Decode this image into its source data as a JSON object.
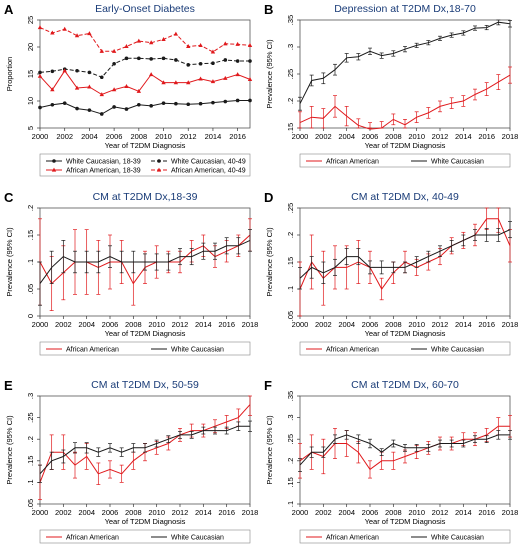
{
  "figure": {
    "colors": {
      "black": "#1a1a1a",
      "red": "#e0191c",
      "title": "#1a3c78",
      "frame": "#555555"
    }
  },
  "chart_data": [
    {
      "panel": "A",
      "type": "line",
      "title": "Early-Onset Diabetes",
      "xlabel": "Year of T2DM Diagnosis",
      "ylabel": "Proportion",
      "xlim": [
        2000,
        2017
      ],
      "ylim": [
        5,
        25
      ],
      "x_ticks": [
        2000,
        2002,
        2004,
        2006,
        2008,
        2010,
        2012,
        2014,
        2016
      ],
      "y_ticks": [
        5,
        10,
        15,
        20,
        25
      ],
      "x": [
        2000,
        2001,
        2002,
        2003,
        2004,
        2005,
        2006,
        2007,
        2008,
        2009,
        2010,
        2011,
        2012,
        2013,
        2014,
        2015,
        2016,
        2017
      ],
      "series": [
        {
          "name": "White Caucasian, 18-39",
          "color": "black",
          "dash": "solid",
          "marker": "circle",
          "values": [
            8.8,
            9.3,
            9.6,
            8.6,
            8.3,
            7.6,
            8.9,
            8.5,
            9.3,
            9.1,
            9.6,
            9.5,
            9.4,
            9.5,
            9.7,
            9.9,
            10.1,
            10.1
          ]
        },
        {
          "name": "White Caucasian, 40-49",
          "color": "black",
          "dash": "dashed",
          "marker": "circle",
          "values": [
            15.3,
            15.5,
            15.9,
            15.6,
            15.3,
            14.4,
            16.9,
            17.9,
            17.9,
            17.8,
            17.9,
            17.6,
            16.7,
            16.9,
            17.0,
            17.6,
            17.4,
            17.4
          ]
        },
        {
          "name": "African American, 18-39",
          "color": "red",
          "dash": "solid",
          "marker": "triangle",
          "values": [
            14.6,
            12.1,
            15.6,
            12.4,
            12.6,
            11.2,
            12.1,
            12.7,
            11.8,
            14.9,
            13.4,
            13.4,
            13.4,
            14.1,
            13.6,
            14.2,
            14.9,
            14.0
          ]
        },
        {
          "name": "African American, 40-49",
          "color": "red",
          "dash": "dashed",
          "marker": "triangle",
          "values": [
            23.6,
            22.6,
            23.3,
            22.1,
            22.5,
            19.2,
            19.2,
            20.1,
            21.1,
            20.8,
            21.4,
            22.4,
            20.1,
            20.3,
            19.1,
            20.6,
            20.5,
            20.3
          ]
        }
      ],
      "legend_position": "bottom"
    },
    {
      "panel": "B",
      "type": "line",
      "title": "Depression at T2DM Dx,18-70",
      "xlabel": "Year of T2DM Diagnosis",
      "ylabel": "Prevalence (95% CI)",
      "xlim": [
        2000,
        2018
      ],
      "ylim": [
        0.15,
        0.35
      ],
      "x_ticks": [
        2000,
        2002,
        2004,
        2006,
        2008,
        2010,
        2012,
        2014,
        2016,
        2018
      ],
      "y_ticks": [
        0.15,
        0.2,
        0.25,
        0.3,
        0.35
      ],
      "y_tick_labels": [
        ".15",
        ".2",
        ".25",
        ".3",
        ".35"
      ],
      "x": [
        2000,
        2001,
        2002,
        2003,
        2004,
        2005,
        2006,
        2007,
        2008,
        2009,
        2010,
        2011,
        2012,
        2013,
        2014,
        2015,
        2016,
        2017,
        2018
      ],
      "series": [
        {
          "name": "African American",
          "color": "red",
          "values": [
            0.16,
            0.17,
            0.168,
            0.19,
            0.172,
            0.155,
            0.148,
            0.15,
            0.166,
            0.156,
            0.17,
            0.178,
            0.19,
            0.196,
            0.2,
            0.212,
            0.222,
            0.235,
            0.248
          ],
          "ci": [
            0.02,
            0.02,
            0.018,
            0.02,
            0.018,
            0.012,
            0.012,
            0.012,
            0.01,
            0.01,
            0.01,
            0.01,
            0.01,
            0.01,
            0.01,
            0.01,
            0.012,
            0.014,
            0.015
          ]
        },
        {
          "name": "White Caucasian",
          "color": "black",
          "values": [
            0.195,
            0.238,
            0.242,
            0.258,
            0.28,
            0.282,
            0.292,
            0.284,
            0.288,
            0.296,
            0.303,
            0.308,
            0.316,
            0.322,
            0.326,
            0.335,
            0.336,
            0.346,
            0.343
          ],
          "ci": [
            0.012,
            0.01,
            0.01,
            0.01,
            0.008,
            0.006,
            0.006,
            0.005,
            0.005,
            0.005,
            0.004,
            0.004,
            0.004,
            0.004,
            0.004,
            0.004,
            0.004,
            0.005,
            0.006
          ]
        }
      ],
      "legend_position": "bottom"
    },
    {
      "panel": "C",
      "type": "line",
      "title": "CM at T2DM Dx,18-39",
      "xlabel": "Year of T2DM Diagnosis",
      "ylabel": "Prevalence (95% CI)",
      "xlim": [
        2000,
        2018
      ],
      "ylim": [
        0,
        0.2
      ],
      "x_ticks": [
        2000,
        2002,
        2004,
        2006,
        2008,
        2010,
        2012,
        2014,
        2016,
        2018
      ],
      "y_ticks": [
        0,
        0.05,
        0.1,
        0.15,
        0.2
      ],
      "y_tick_labels": [
        "0",
        ".05",
        ".1",
        ".15",
        ".2"
      ],
      "x": [
        2000,
        2001,
        2002,
        2003,
        2004,
        2005,
        2006,
        2007,
        2008,
        2009,
        2010,
        2011,
        2012,
        2013,
        2014,
        2015,
        2016,
        2017,
        2018
      ],
      "series": [
        {
          "name": "African American",
          "color": "red",
          "values": [
            0.1,
            0.06,
            0.08,
            0.1,
            0.1,
            0.09,
            0.1,
            0.1,
            0.06,
            0.09,
            0.1,
            0.1,
            0.1,
            0.12,
            0.13,
            0.11,
            0.12,
            0.13,
            0.15
          ],
          "ci": [
            0.08,
            0.05,
            0.05,
            0.06,
            0.06,
            0.05,
            0.05,
            0.04,
            0.04,
            0.03,
            0.03,
            0.02,
            0.02,
            0.02,
            0.02,
            0.02,
            0.02,
            0.02,
            0.03
          ]
        },
        {
          "name": "White Caucasian",
          "color": "black",
          "values": [
            0.06,
            0.09,
            0.11,
            0.1,
            0.1,
            0.1,
            0.11,
            0.1,
            0.1,
            0.1,
            0.1,
            0.1,
            0.11,
            0.11,
            0.12,
            0.12,
            0.13,
            0.13,
            0.14
          ],
          "ci": [
            0.04,
            0.03,
            0.03,
            0.02,
            0.02,
            0.02,
            0.02,
            0.02,
            0.02,
            0.015,
            0.015,
            0.015,
            0.015,
            0.015,
            0.015,
            0.015,
            0.015,
            0.015,
            0.02
          ]
        }
      ],
      "legend_position": "bottom"
    },
    {
      "panel": "D",
      "type": "line",
      "title": "CM at T2DM Dx, 40-49",
      "xlabel": "Year of T2DM Diagnosis",
      "ylabel": "Prevalence (95% CI)",
      "xlim": [
        2000,
        2018
      ],
      "ylim": [
        0.05,
        0.25
      ],
      "x_ticks": [
        2000,
        2002,
        2004,
        2006,
        2008,
        2010,
        2012,
        2014,
        2016,
        2018
      ],
      "y_ticks": [
        0.05,
        0.1,
        0.15,
        0.2,
        0.25
      ],
      "y_tick_labels": [
        ".05",
        ".1",
        ".15",
        ".2",
        ".25"
      ],
      "x": [
        2000,
        2001,
        2002,
        2003,
        2004,
        2005,
        2006,
        2007,
        2008,
        2009,
        2010,
        2011,
        2012,
        2013,
        2014,
        2015,
        2016,
        2017,
        2018
      ],
      "series": [
        {
          "name": "African American",
          "color": "red",
          "values": [
            0.1,
            0.15,
            0.12,
            0.14,
            0.14,
            0.15,
            0.14,
            0.1,
            0.13,
            0.15,
            0.14,
            0.15,
            0.16,
            0.18,
            0.19,
            0.2,
            0.23,
            0.23,
            0.18
          ],
          "ci": [
            0.05,
            0.05,
            0.05,
            0.04,
            0.04,
            0.04,
            0.03,
            0.02,
            0.02,
            0.02,
            0.015,
            0.015,
            0.015,
            0.015,
            0.015,
            0.02,
            0.02,
            0.025,
            0.03
          ]
        },
        {
          "name": "White Caucasian",
          "color": "black",
          "values": [
            0.12,
            0.14,
            0.13,
            0.14,
            0.16,
            0.16,
            0.14,
            0.14,
            0.14,
            0.14,
            0.15,
            0.16,
            0.17,
            0.18,
            0.19,
            0.2,
            0.2,
            0.2,
            0.21
          ],
          "ci": [
            0.02,
            0.02,
            0.02,
            0.015,
            0.015,
            0.015,
            0.012,
            0.012,
            0.01,
            0.01,
            0.01,
            0.01,
            0.01,
            0.01,
            0.01,
            0.01,
            0.012,
            0.012,
            0.015
          ]
        }
      ],
      "legend_position": "bottom"
    },
    {
      "panel": "E",
      "type": "line",
      "title": "CM at T2DM Dx, 50-59",
      "xlabel": "Year of T2DM Diagnosis",
      "ylabel": "Prevalence (95% CI)",
      "xlim": [
        2000,
        2018
      ],
      "ylim": [
        0.05,
        0.3
      ],
      "x_ticks": [
        2000,
        2002,
        2004,
        2006,
        2008,
        2010,
        2012,
        2014,
        2016,
        2018
      ],
      "y_ticks": [
        0.05,
        0.1,
        0.15,
        0.2,
        0.25,
        0.3
      ],
      "y_tick_labels": [
        ".05",
        ".1",
        ".15",
        ".2",
        ".25",
        ".3"
      ],
      "x": [
        2000,
        2001,
        2002,
        2003,
        2004,
        2005,
        2006,
        2007,
        2008,
        2009,
        2010,
        2011,
        2012,
        2013,
        2014,
        2015,
        2016,
        2017,
        2018
      ],
      "series": [
        {
          "name": "African American",
          "color": "red",
          "values": [
            0.1,
            0.17,
            0.17,
            0.14,
            0.16,
            0.12,
            0.13,
            0.12,
            0.15,
            0.17,
            0.18,
            0.19,
            0.21,
            0.22,
            0.22,
            0.23,
            0.24,
            0.25,
            0.28
          ],
          "ci": [
            0.04,
            0.04,
            0.04,
            0.03,
            0.03,
            0.025,
            0.02,
            0.02,
            0.02,
            0.02,
            0.015,
            0.015,
            0.015,
            0.015,
            0.015,
            0.015,
            0.015,
            0.02,
            0.025
          ]
        },
        {
          "name": "White Caucasian",
          "color": "black",
          "values": [
            0.12,
            0.15,
            0.16,
            0.18,
            0.18,
            0.17,
            0.18,
            0.17,
            0.18,
            0.18,
            0.19,
            0.2,
            0.21,
            0.21,
            0.22,
            0.22,
            0.22,
            0.23,
            0.23
          ],
          "ci": [
            0.02,
            0.02,
            0.015,
            0.012,
            0.012,
            0.01,
            0.01,
            0.01,
            0.01,
            0.01,
            0.008,
            0.008,
            0.008,
            0.008,
            0.008,
            0.008,
            0.008,
            0.01,
            0.012
          ]
        }
      ],
      "legend_position": "bottom"
    },
    {
      "panel": "F",
      "type": "line",
      "title": "CM at T2DM Dx, 60-70",
      "xlabel": "Year of T2DM Diagnosis",
      "ylabel": "Prevalence (95% CI)",
      "xlim": [
        2000,
        2018
      ],
      "ylim": [
        0.1,
        0.35
      ],
      "x_ticks": [
        2000,
        2002,
        2004,
        2006,
        2008,
        2010,
        2012,
        2014,
        2016,
        2018
      ],
      "y_ticks": [
        0.1,
        0.15,
        0.2,
        0.25,
        0.3,
        0.35
      ],
      "y_tick_labels": [
        ".1",
        ".15",
        ".2",
        ".25",
        ".3",
        ".35"
      ],
      "x": [
        2000,
        2001,
        2002,
        2003,
        2004,
        2005,
        2006,
        2007,
        2008,
        2009,
        2010,
        2011,
        2012,
        2013,
        2014,
        2015,
        2016,
        2017,
        2018
      ],
      "series": [
        {
          "name": "African American",
          "color": "red",
          "values": [
            0.2,
            0.22,
            0.21,
            0.24,
            0.24,
            0.22,
            0.18,
            0.2,
            0.2,
            0.21,
            0.22,
            0.23,
            0.24,
            0.24,
            0.25,
            0.25,
            0.26,
            0.28,
            0.28
          ],
          "ci": [
            0.04,
            0.04,
            0.04,
            0.035,
            0.03,
            0.025,
            0.02,
            0.02,
            0.02,
            0.015,
            0.015,
            0.015,
            0.015,
            0.015,
            0.015,
            0.015,
            0.015,
            0.02,
            0.025
          ]
        },
        {
          "name": "White Caucasian",
          "color": "black",
          "values": [
            0.19,
            0.22,
            0.22,
            0.25,
            0.26,
            0.25,
            0.24,
            0.22,
            0.24,
            0.23,
            0.23,
            0.23,
            0.24,
            0.24,
            0.24,
            0.25,
            0.25,
            0.26,
            0.26
          ],
          "ci": [
            0.015,
            0.012,
            0.012,
            0.01,
            0.01,
            0.01,
            0.01,
            0.008,
            0.008,
            0.008,
            0.008,
            0.008,
            0.008,
            0.008,
            0.008,
            0.008,
            0.008,
            0.01,
            0.01
          ]
        }
      ],
      "legend_position": "bottom"
    }
  ]
}
